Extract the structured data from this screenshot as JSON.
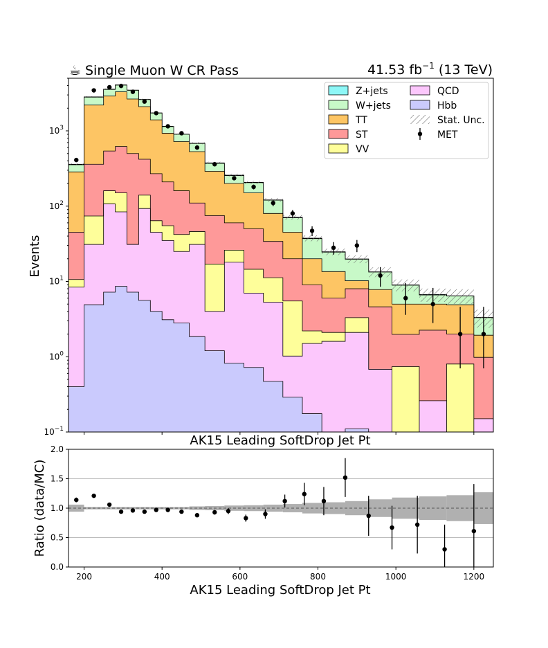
{
  "header": {
    "title_icon": "coffee-icon",
    "title_glyph": "☕",
    "title": "Single Muon W CR Pass",
    "lumi_value": "41.53 fb",
    "lumi_exp": "−1",
    "lumi_energy": " (13 TeV)"
  },
  "main_xlabel": "AK15 Leading SoftDrop Jet Pt",
  "ratio_xlabel": "AK15 Leading SoftDrop Jet Pt",
  "main_ylabel": "Events",
  "ratio_ylabel": "Ratio (data/MC)",
  "legend": [
    {
      "label": "Z+jets",
      "color": "#8ef7f7",
      "kind": "patch"
    },
    {
      "label": "QCD",
      "color": "#fcc7fc",
      "kind": "patch"
    },
    {
      "label": "W+jets",
      "color": "#c8f9c8",
      "kind": "patch"
    },
    {
      "label": "Hbb",
      "color": "#cacafd",
      "kind": "patch"
    },
    {
      "label": "TT",
      "color": "#fdc564",
      "kind": "patch"
    },
    {
      "label": "Stat. Unc.",
      "color": "#888888",
      "kind": "hatch"
    },
    {
      "label": "ST",
      "color": "#fe9999",
      "kind": "patch"
    },
    {
      "label": "MET",
      "color": "#000000",
      "kind": "point"
    },
    {
      "label": "VV",
      "color": "#fefe9a",
      "kind": "patch"
    }
  ],
  "chart_data": [
    {
      "type": "area",
      "subtype": "stacked-step-histogram",
      "title": "Single Muon W CR Pass",
      "xlabel": "AK15 Leading SoftDrop Jet Pt",
      "ylabel": "Events",
      "yscale": "log",
      "xlim": [
        160,
        1250
      ],
      "ylim": [
        0.1,
        5000
      ],
      "x_ticks": [
        200,
        400,
        600,
        800,
        1000,
        1200
      ],
      "y_ticks": [
        {
          "value": 0.1,
          "base": "10",
          "exp": "−1"
        },
        {
          "value": 1,
          "base": "10",
          "exp": "0"
        },
        {
          "value": 10,
          "base": "10",
          "exp": "1"
        },
        {
          "value": 100,
          "base": "10",
          "exp": "2"
        },
        {
          "value": 1000,
          "base": "10",
          "exp": "3"
        }
      ],
      "bin_edges": [
        160,
        200,
        250,
        280,
        310,
        340,
        370,
        400,
        430,
        470,
        510,
        560,
        610,
        660,
        710,
        760,
        810,
        870,
        930,
        990,
        1060,
        1130,
        1200,
        1250
      ],
      "series_stack_order": [
        "Hbb",
        "QCD",
        "VV",
        "ST",
        "TT",
        "W+jets",
        "Z+jets"
      ],
      "stack_cumulative": {
        "Hbb": [
          0.4,
          4.9,
          7.2,
          8.6,
          7.2,
          5.6,
          4.0,
          3.1,
          2.8,
          1.85,
          1.2,
          0.82,
          0.72,
          0.47,
          0.29,
          0.175,
          0.1,
          0.11,
          0.1,
          0.1,
          0.1,
          0.1,
          0.1
        ],
        "QCD": [
          8.4,
          31,
          107,
          84,
          31,
          93,
          45,
          35,
          25,
          31,
          4.0,
          18,
          7.0,
          5.3,
          1.02,
          1.5,
          1.6,
          2.1,
          0.68,
          0.1,
          0.26,
          0.1,
          0.15
        ],
        "VV": [
          10.6,
          74,
          160,
          150,
          31,
          140,
          64,
          55,
          42,
          46,
          17,
          26,
          14.5,
          11.2,
          5.5,
          2.2,
          2.1,
          3.3,
          0.68,
          0.74,
          0.26,
          0.8,
          0.15
        ],
        "ST": [
          45,
          360,
          540,
          620,
          500,
          420,
          270,
          210,
          160,
          110,
          75,
          60,
          50,
          34,
          20,
          9.0,
          6.0,
          8.0,
          4.6,
          1.98,
          2.25,
          2.0,
          0.98
        ],
        "TT": [
          285,
          2200,
          2900,
          3300,
          2650,
          2100,
          1400,
          930,
          720,
          530,
          290,
          200,
          150,
          80,
          45,
          20,
          13.5,
          10.2,
          7.8,
          5.0,
          5.0,
          4.9,
          1.93
        ],
        "W+jets": [
          355,
          2800,
          3550,
          4050,
          3450,
          2600,
          1720,
          1140,
          900,
          680,
          370,
          255,
          205,
          120,
          70,
          37,
          24.5,
          19.7,
          13.3,
          8.9,
          6.6,
          6.4,
          3.3
        ],
        "Z+jets": [
          360,
          2830,
          3580,
          4080,
          3480,
          2620,
          1735,
          1150,
          905,
          685,
          375,
          258,
          207,
          121,
          71,
          37.5,
          24.8,
          19.9,
          13.4,
          9.0,
          6.7,
          6.45,
          3.32
        ]
      },
      "stat_unc_relative": [
        0.03,
        0.02,
        0.02,
        0.02,
        0.02,
        0.02,
        0.02,
        0.02,
        0.025,
        0.03,
        0.035,
        0.045,
        0.05,
        0.06,
        0.07,
        0.09,
        0.1,
        0.12,
        0.15,
        0.18,
        0.2,
        0.22,
        0.27
      ],
      "data_points": {
        "name": "MET",
        "x": [
          180,
          225,
          265,
          295,
          325,
          355,
          385,
          415,
          450,
          490,
          535,
          585,
          635,
          685,
          735,
          785,
          840,
          900,
          960,
          1025,
          1095,
          1165,
          1225
        ],
        "y": [
          410,
          3450,
          3800,
          3950,
          3300,
          2450,
          1720,
          1150,
          930,
          600,
          360,
          235,
          180,
          110,
          80,
          47,
          28,
          30,
          12,
          6.0,
          5.0,
          2.0,
          2.0
        ],
        "yerr_low": [
          20,
          59,
          62,
          63,
          57,
          49,
          41,
          34,
          30,
          24,
          19,
          15,
          13,
          10.5,
          9,
          7,
          5.3,
          5.5,
          3.5,
          2.4,
          2.2,
          1.3,
          1.3
        ],
        "yerr_high": [
          20,
          59,
          62,
          63,
          57,
          49,
          41,
          34,
          30,
          24,
          19,
          15,
          13,
          10.5,
          9,
          7,
          5.3,
          5.5,
          3.5,
          3.5,
          3.2,
          2.6,
          2.6
        ]
      }
    },
    {
      "type": "scatter",
      "subtype": "ratio-panel",
      "title": "",
      "xlabel": "AK15 Leading SoftDrop Jet Pt",
      "ylabel": "Ratio (data/MC)",
      "xlim": [
        160,
        1250
      ],
      "ylim": [
        0.0,
        2.0
      ],
      "x_ticks": [
        200,
        400,
        600,
        800,
        1000,
        1200
      ],
      "y_ticks": [
        0.0,
        0.5,
        1.0,
        1.5,
        2.0
      ],
      "y_tick_labels": [
        "0.0",
        "0.5",
        "1.0",
        "1.5",
        "2.0"
      ],
      "horizontal_gridlines": [
        0.5,
        1.0,
        1.5
      ],
      "reference_line": 1.0,
      "x": [
        180,
        225,
        265,
        295,
        325,
        355,
        385,
        415,
        450,
        490,
        535,
        570,
        615,
        665,
        715,
        765,
        815,
        870,
        930,
        990,
        1055,
        1125,
        1200
      ],
      "ratio": [
        1.14,
        1.21,
        1.06,
        0.94,
        0.96,
        0.94,
        0.97,
        0.97,
        0.94,
        0.88,
        0.93,
        0.95,
        0.83,
        0.9,
        1.12,
        1.24,
        1.12,
        1.52,
        0.87,
        0.67,
        0.72,
        0.3,
        0.61
      ],
      "err": [
        0.04,
        0.02,
        0.02,
        0.02,
        0.02,
        0.02,
        0.02,
        0.02,
        0.02,
        0.03,
        0.04,
        0.05,
        0.06,
        0.08,
        0.11,
        0.19,
        0.24,
        0.33,
        0.34,
        0.37,
        0.49,
        0.42,
        0.8
      ],
      "unc_band_relative": [
        0.06,
        0.02,
        0.02,
        0.02,
        0.02,
        0.02,
        0.02,
        0.02,
        0.02,
        0.03,
        0.035,
        0.045,
        0.05,
        0.06,
        0.07,
        0.09,
        0.1,
        0.12,
        0.15,
        0.18,
        0.2,
        0.22,
        0.27
      ]
    }
  ]
}
